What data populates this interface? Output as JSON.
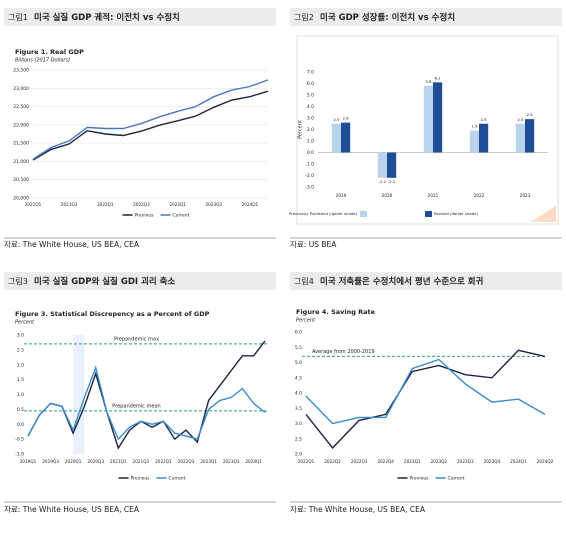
{
  "panels": [
    {
      "label": "그림1",
      "title": "미국 실질 GDP 궤적: 이전치 vs 수정치",
      "source": "자료: The White House, US BEA, CEA"
    },
    {
      "label": "그림2",
      "title": "미국 GDP 성장률: 이전치 vs 수정치",
      "source": "자료: US BEA"
    },
    {
      "label": "그림3",
      "title": "미국 실질 GDP와 실질 GDI 괴리 축소",
      "source": "자료: The White House, US BEA, CEA"
    },
    {
      "label": "그림4",
      "title": "미국 저축률은 수정치에서 평년 수준으로 회귀",
      "source": "자료: The White House, US BEA, CEA"
    }
  ],
  "chart_data": [
    {
      "type": "line",
      "title": "Figure 1. Real GDP",
      "subtitle": "Billions (2017 Dollars)",
      "categories": [
        "2021Q1",
        null,
        "2021Q3",
        null,
        "2022Q1",
        null,
        "2022Q3",
        null,
        "2023Q1",
        null,
        "2023Q3",
        null,
        "2024Q1",
        null
      ],
      "series": [
        {
          "name": "Previous",
          "color": "#1c2442",
          "values": [
            21040,
            21330,
            21480,
            21840,
            21750,
            21710,
            21830,
            21990,
            22110,
            22240,
            22480,
            22680,
            22770,
            22920
          ]
        },
        {
          "name": "Current",
          "color": "#4a78bf",
          "values": [
            21060,
            21380,
            21560,
            21930,
            21900,
            21900,
            22040,
            22220,
            22370,
            22500,
            22770,
            22950,
            23050,
            23230
          ]
        }
      ],
      "ylim": [
        20000,
        23500
      ],
      "yticks": [
        {
          "value": 20000,
          "label": "20,000"
        },
        {
          "value": 20500,
          "label": "20,500"
        },
        {
          "value": 21000,
          "label": "21,000"
        },
        {
          "value": 21500,
          "label": "21,500"
        },
        {
          "value": 22000,
          "label": "22,000"
        },
        {
          "value": 22500,
          "label": "22,500"
        },
        {
          "value": 23000,
          "label": "23,000"
        },
        {
          "value": 23500,
          "label": "23,500"
        }
      ],
      "grid": true
    },
    {
      "type": "bar",
      "y_label": "Percent",
      "categories": [
        "2019",
        "2020",
        "2021",
        "2022",
        "2023"
      ],
      "series": [
        {
          "name": "Previously Published (lighter shade)",
          "color": "#b9d3ee",
          "values": [
            2.5,
            -2.2,
            5.8,
            1.9,
            2.5
          ]
        },
        {
          "name": "Revised (darker shade)",
          "color": "#1f4e96",
          "values": [
            2.6,
            -2.2,
            6.1,
            2.5,
            2.9
          ]
        }
      ],
      "ylim": [
        -3,
        7
      ],
      "yticks": [
        {
          "value": -3,
          "label": "-3.0"
        },
        {
          "value": -2,
          "label": "-2.0"
        },
        {
          "value": -1,
          "label": "-1.0"
        },
        {
          "value": 0,
          "label": "0.0"
        },
        {
          "value": 1,
          "label": "1.0"
        },
        {
          "value": 2,
          "label": "2.0"
        },
        {
          "value": 3,
          "label": "3.0"
        },
        {
          "value": 4,
          "label": "4.0"
        },
        {
          "value": 5,
          "label": "5.0"
        },
        {
          "value": 6,
          "label": "6.0"
        },
        {
          "value": 7,
          "label": "7.0"
        }
      ],
      "grid": false
    },
    {
      "type": "line",
      "title": "Figure 3. Statistical Discrepency as a Percent of GDP",
      "subtitle": "Percent",
      "categories": [
        "2019Q1",
        null,
        "2019Q3",
        null,
        "2020Q1",
        null,
        "2020Q3",
        null,
        "2021Q1",
        null,
        "2021Q3",
        null,
        "2022Q1",
        null,
        "2022Q3",
        null,
        "2023Q1",
        null,
        "2023Q3",
        null,
        "2024Q1",
        null
      ],
      "series": [
        {
          "name": "Previous",
          "color": "#1c2442",
          "values": [
            -0.4,
            0.3,
            0.7,
            0.6,
            -0.3,
            0.6,
            1.7,
            0.4,
            -0.8,
            -0.2,
            0.1,
            -0.1,
            0.1,
            -0.5,
            -0.2,
            -0.6,
            0.8,
            1.3,
            1.8,
            2.3,
            2.3,
            2.8
          ]
        },
        {
          "name": "Current",
          "color": "#3a8ccc",
          "values": [
            -0.4,
            0.3,
            0.7,
            0.6,
            -0.2,
            0.9,
            1.9,
            0.4,
            -0.5,
            -0.1,
            0.1,
            0.0,
            0.1,
            -0.3,
            -0.4,
            -0.5,
            0.5,
            0.8,
            0.9,
            1.2,
            0.7,
            0.4
          ]
        }
      ],
      "reference_lines": [
        {
          "value": 2.7,
          "label": "Prepandemic max"
        },
        {
          "value": 0.45,
          "label": "Prepandemic mean"
        }
      ],
      "ylim": [
        -1,
        3
      ],
      "yticks": [
        {
          "value": -1,
          "label": "-1.0"
        },
        -0.5,
        {
          "value": 0,
          "label": "0.0"
        },
        0.5,
        {
          "value": 1,
          "label": "1.0"
        },
        1.5,
        {
          "value": 2,
          "label": "2.0"
        },
        2.5,
        {
          "value": 3,
          "label": "3.0"
        }
      ],
      "grid": false
    },
    {
      "type": "line",
      "title": "Figure 4. Saving Rate",
      "subtitle": "Percent",
      "categories": [
        "2022Q1",
        "2022Q2",
        "2022Q3",
        "2022Q4",
        "2023Q1",
        "2023Q2",
        "2023Q3",
        "2023Q4",
        "2024Q1",
        "2024Q2"
      ],
      "series": [
        {
          "name": "Previous",
          "color": "#1c2442",
          "values": [
            3.3,
            2.2,
            3.1,
            3.3,
            4.7,
            4.9,
            4.6,
            4.5,
            5.4,
            5.2
          ]
        },
        {
          "name": "Current",
          "color": "#3a8ccc",
          "values": [
            3.9,
            3.0,
            3.2,
            3.2,
            4.8,
            5.1,
            4.3,
            3.7,
            3.8,
            3.3
          ]
        }
      ],
      "reference_lines": [
        {
          "value": 5.2,
          "label": "Average from 2000-2019"
        }
      ],
      "ylim": [
        2,
        6
      ],
      "yticks": [
        {
          "value": 2,
          "label": "2.0"
        },
        2.5,
        {
          "value": 3,
          "label": "3.0"
        },
        3.5,
        {
          "value": 4,
          "label": "4.0"
        },
        4.5,
        {
          "value": 5,
          "label": "5.0"
        },
        5.5,
        {
          "value": 6,
          "label": "6.0"
        }
      ],
      "grid": false
    }
  ]
}
